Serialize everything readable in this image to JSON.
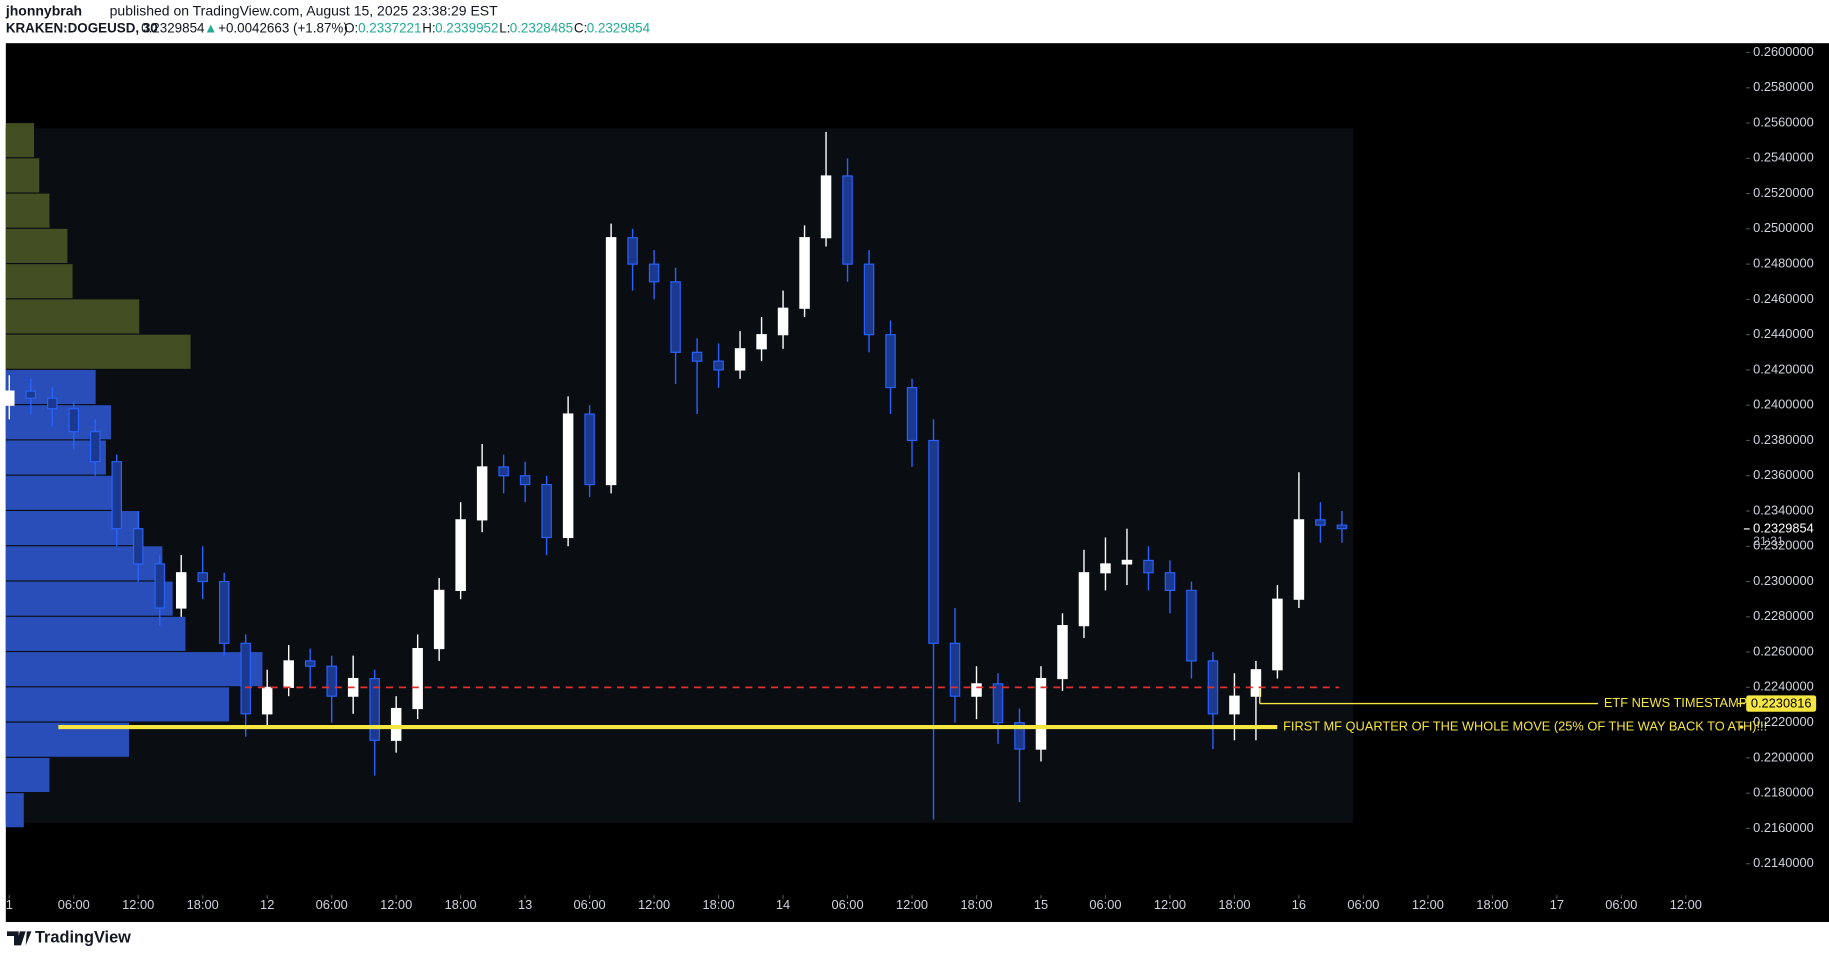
{
  "header": {
    "publisher": "jhonnybrah",
    "published": "published on TradingView.com, August 15, 2025 23:38:29 EST",
    "symbol": "KRAKEN:DOGEUSD, 30",
    "last": "0.2329854",
    "arrow": "▲",
    "change": "+0.0042663 (+1.87%)",
    "o_label": "O:",
    "o": "0.2337221",
    "h_label": "H:",
    "h": "0.2339952",
    "l_label": "L:",
    "l": "0.2328485",
    "c_label": "C:",
    "c": "0.2329854"
  },
  "footer": {
    "brand": "TradingView"
  },
  "chart_data": {
    "type": "candlestick",
    "up_color": "#ffffff",
    "down_color": "#2962ff",
    "open": [
      0.24,
      0.2408,
      0.2404,
      0.2398,
      0.2385,
      0.2368,
      0.233,
      0.231,
      0.2285,
      0.2305,
      0.23,
      0.2265,
      0.2225,
      0.224,
      0.2255,
      0.2252,
      0.2235,
      0.2245,
      0.221,
      0.2228,
      0.2262,
      0.2295,
      0.2335,
      0.2365,
      0.236,
      0.2355,
      0.2325,
      0.2395,
      0.2355,
      0.2495,
      0.248,
      0.247,
      0.243,
      0.2425,
      0.242,
      0.2432,
      0.244,
      0.2455,
      0.2495,
      0.253,
      0.248,
      0.244,
      0.241,
      0.238,
      0.2265,
      0.2235,
      0.2242,
      0.222,
      0.2205,
      0.2245,
      0.2275,
      0.2305,
      0.231,
      0.2312,
      0.2305,
      0.2295,
      0.2255,
      0.2225,
      0.2235,
      0.225,
      0.229,
      0.2335,
      0.2332
    ],
    "high": [
      0.2417,
      0.2415,
      0.241,
      0.2402,
      0.2392,
      0.2372,
      0.234,
      0.2315,
      0.2315,
      0.232,
      0.2305,
      0.227,
      0.225,
      0.2264,
      0.2262,
      0.2258,
      0.2258,
      0.225,
      0.2235,
      0.227,
      0.2302,
      0.2345,
      0.2378,
      0.2372,
      0.2368,
      0.236,
      0.2405,
      0.24,
      0.2503,
      0.25,
      0.2488,
      0.2478,
      0.2438,
      0.2435,
      0.2442,
      0.245,
      0.2465,
      0.2502,
      0.2555,
      0.254,
      0.2488,
      0.2448,
      0.2415,
      0.2392,
      0.2285,
      0.2252,
      0.2248,
      0.2228,
      0.2252,
      0.2282,
      0.2318,
      0.2325,
      0.233,
      0.232,
      0.2312,
      0.23,
      0.226,
      0.2248,
      0.2255,
      0.2298,
      0.2362,
      0.2345,
      0.234
    ],
    "low": [
      0.2392,
      0.2395,
      0.2388,
      0.2375,
      0.236,
      0.232,
      0.23,
      0.2275,
      0.228,
      0.229,
      0.2258,
      0.2212,
      0.2218,
      0.2235,
      0.224,
      0.222,
      0.2225,
      0.219,
      0.2203,
      0.2222,
      0.2255,
      0.229,
      0.2328,
      0.235,
      0.2345,
      0.2315,
      0.232,
      0.2348,
      0.235,
      0.2465,
      0.246,
      0.2412,
      0.2395,
      0.241,
      0.2415,
      0.2425,
      0.2432,
      0.245,
      0.249,
      0.247,
      0.243,
      0.2395,
      0.2365,
      0.2165,
      0.222,
      0.2222,
      0.2208,
      0.2175,
      0.2198,
      0.2238,
      0.2268,
      0.2295,
      0.2298,
      0.2295,
      0.2282,
      0.2245,
      0.2205,
      0.221,
      0.221,
      0.2245,
      0.2285,
      0.2322,
      0.2322
    ],
    "close": [
      0.2408,
      0.2404,
      0.2398,
      0.2385,
      0.2368,
      0.233,
      0.231,
      0.2285,
      0.2305,
      0.23,
      0.2265,
      0.2225,
      0.224,
      0.2255,
      0.2252,
      0.2235,
      0.2245,
      0.221,
      0.2228,
      0.2262,
      0.2295,
      0.2335,
      0.2365,
      0.236,
      0.2355,
      0.2325,
      0.2395,
      0.2355,
      0.2495,
      0.248,
      0.247,
      0.243,
      0.2425,
      0.242,
      0.2432,
      0.244,
      0.2455,
      0.2495,
      0.253,
      0.248,
      0.244,
      0.241,
      0.238,
      0.2265,
      0.2235,
      0.2242,
      0.222,
      0.2205,
      0.2245,
      0.2275,
      0.2305,
      0.231,
      0.2312,
      0.2305,
      0.2295,
      0.2255,
      0.2225,
      0.2235,
      0.225,
      0.229,
      0.2335,
      0.2332,
      0.233
    ],
    "xlim": [
      -0.16,
      80.7
    ],
    "xticks": [
      {
        "value": 0,
        "label": "1"
      },
      {
        "value": 3,
        "label": "06:00"
      },
      {
        "value": 6,
        "label": "12:00"
      },
      {
        "value": 9,
        "label": "18:00"
      },
      12,
      {
        "value": 15,
        "label": "06:00"
      },
      {
        "value": 18,
        "label": "12:00"
      },
      {
        "value": 21,
        "label": "18:00"
      },
      {
        "value": 24,
        "label": "13"
      },
      {
        "value": 27,
        "label": "06:00"
      },
      {
        "value": 30,
        "label": "12:00"
      },
      {
        "value": 33,
        "label": "18:00"
      },
      {
        "value": 36,
        "label": "14"
      },
      {
        "value": 39,
        "label": "06:00"
      },
      {
        "value": 42,
        "label": "12:00"
      },
      {
        "value": 45,
        "label": "18:00"
      },
      {
        "value": 48,
        "label": "15"
      },
      {
        "value": 51,
        "label": "06:00"
      },
      {
        "value": 54,
        "label": "12:00"
      },
      {
        "value": 57,
        "label": "18:00"
      },
      {
        "value": 60,
        "label": "16"
      },
      {
        "value": 63,
        "label": "06:00"
      },
      {
        "value": 66,
        "label": "12:00"
      },
      {
        "value": 69,
        "label": "18:00"
      },
      {
        "value": 72,
        "label": "17"
      },
      {
        "value": 75,
        "label": "06:00"
      },
      {
        "value": 78,
        "label": "12:00"
      }
    ],
    "ylim": [
      0.21235,
      0.26053
    ],
    "yticks": [
      {
        "value": 0.214,
        "label": "0.2140000"
      },
      {
        "value": 0.216,
        "label": "0.2160000"
      },
      {
        "value": 0.218,
        "label": "0.2180000"
      },
      {
        "value": 0.22,
        "label": "0.2200000"
      },
      {
        "value": 0.222,
        "label": "0.2220000"
      },
      {
        "value": 0.224,
        "label": "0.2240000"
      },
      {
        "value": 0.226,
        "label": "0.2260000"
      },
      {
        "value": 0.228,
        "label": "0.2280000"
      },
      {
        "value": 0.23,
        "label": "0.2300000"
      },
      {
        "value": 0.232,
        "label": "0.2320000"
      },
      {
        "value": 0.234,
        "label": "0.2340000"
      },
      {
        "value": 0.236,
        "label": "0.2360000"
      },
      {
        "value": 0.238,
        "label": "0.2380000"
      },
      {
        "value": 0.24,
        "label": "0.2400000"
      },
      {
        "value": 0.242,
        "label": "0.2420000"
      },
      {
        "value": 0.244,
        "label": "0.2440000"
      },
      {
        "value": 0.246,
        "label": "0.2460000"
      },
      {
        "value": 0.248,
        "label": "0.2480000"
      },
      {
        "value": 0.25,
        "label": "0.2500000"
      },
      {
        "value": 0.252,
        "label": "0.2520000"
      },
      {
        "value": 0.254,
        "label": "0.2540000"
      },
      {
        "value": 0.256,
        "label": "0.2560000"
      },
      {
        "value": 0.258,
        "label": "0.2580000"
      },
      {
        "value": 0.26,
        "label": "0.2600000"
      }
    ],
    "profile": {
      "bins": [
        0.216,
        0.218,
        0.22,
        0.222,
        0.224,
        0.226,
        0.228,
        0.23,
        0.232,
        0.234,
        0.236,
        0.238,
        0.24,
        0.242,
        0.244,
        0.246,
        0.248,
        0.25,
        0.252,
        0.254,
        0.256
      ],
      "values": [
        7,
        17,
        48,
        87,
        100,
        70,
        65,
        61,
        52,
        43,
        39,
        41,
        35,
        72,
        52,
        26,
        24,
        17,
        13,
        11
      ],
      "colors": [
        "#2f5bd8",
        "#2f5bd8",
        "#2f5bd8",
        "#2f5bd8",
        "#2f5bd8",
        "#2f5bd8",
        "#2f5bd8",
        "#2f5bd8",
        "#2f5bd8",
        "#2f5bd8",
        "#2f5bd8",
        "#2f5bd8",
        "#2f5bd8",
        "#4d5a26",
        "#4d5a26",
        "#4d5a26",
        "#4d5a26",
        "#4d5a26",
        "#4d5a26",
        "#4d5a26"
      ]
    },
    "last_price": {
      "value": 0.2329854,
      "label": "0.2329854",
      "countdown": "21:31"
    },
    "annotations": [
      {
        "text": "ETF NEWS TIMESTAMP",
        "value": 0.2230816,
        "label": "0.2230816",
        "color": "#f5e642"
      },
      {
        "text": "FIRST MF QUARTER OF THE WHOLE MOVE (25% OF THE WAY BACK TO ATH)!!!",
        "value": 0.22175,
        "color": "#f5e642"
      }
    ],
    "level_line": {
      "value": 0.224,
      "color": "#e03030"
    }
  }
}
